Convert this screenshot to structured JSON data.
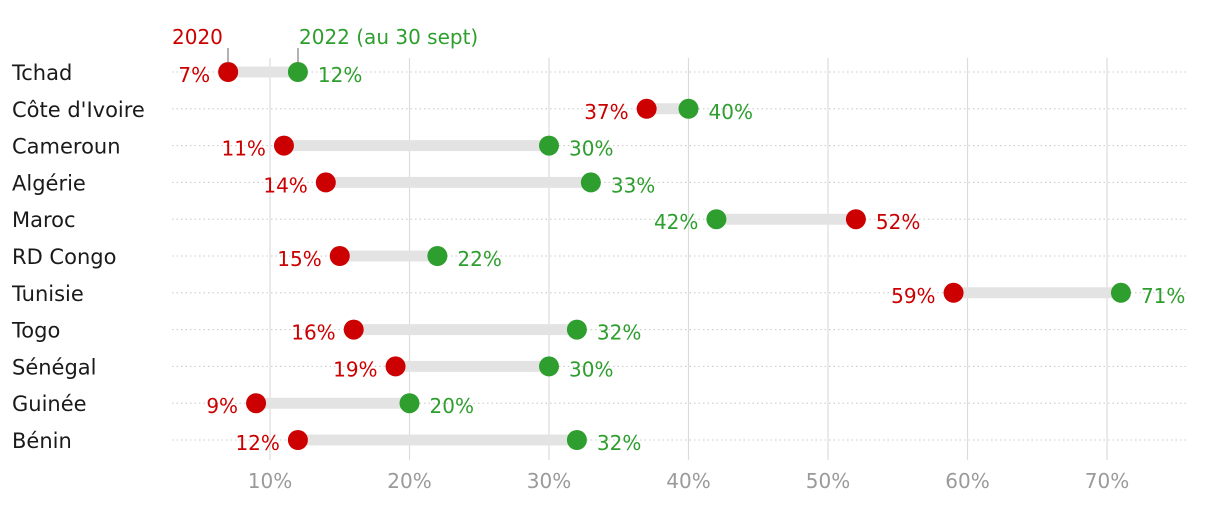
{
  "colors": {
    "y2020": "#cc0000",
    "y2022": "#2e9e2e",
    "connector": "#e3e3e3",
    "grid": "#dcdcdc"
  },
  "chart_data": {
    "type": "dumbbell",
    "legend": {
      "start_label": "2020",
      "end_label": "2022 (au 30 sept)",
      "placement": "top"
    },
    "x_ticks": [
      "10%",
      "20%",
      "30%",
      "40%",
      "50%",
      "60%",
      "70%"
    ],
    "x_tick_values": [
      10,
      20,
      30,
      40,
      50,
      60,
      70
    ],
    "xlim": [
      3,
      76
    ],
    "series": [
      {
        "name": "2020",
        "values": [
          7,
          37,
          11,
          14,
          52,
          15,
          59,
          16,
          19,
          9,
          12
        ],
        "labels": [
          "7%",
          "37%",
          "11%",
          "14%",
          "52%",
          "15%",
          "59%",
          "16%",
          "19%",
          "9%",
          "12%"
        ]
      },
      {
        "name": "2022 (au 30 sept)",
        "values": [
          12,
          40,
          30,
          33,
          42,
          22,
          71,
          32,
          30,
          20,
          32
        ],
        "labels": [
          "12%",
          "40%",
          "30%",
          "33%",
          "42%",
          "22%",
          "71%",
          "32%",
          "30%",
          "20%",
          "32%"
        ]
      }
    ],
    "categories": [
      "Tchad",
      "Côte d'Ivoire",
      "Cameroun",
      "Algérie",
      "Maroc",
      "RD Congo",
      "Tunisie",
      "Togo",
      "Sénégal",
      "Guinée",
      "Bénin"
    ]
  }
}
